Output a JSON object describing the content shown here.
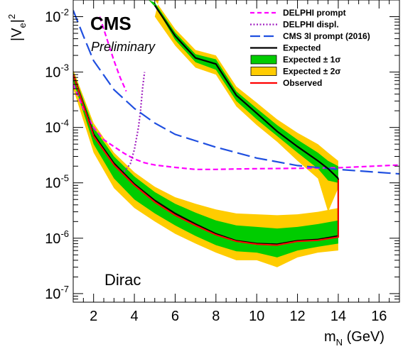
{
  "chart_data": {
    "type": "line",
    "xlabel": "m",
    "xlabel_sub": "N",
    "xunit": " (GeV)",
    "ylabel": "|V",
    "ylabel_sub": "e",
    "ylabel_post": "|",
    "ylabel_sup": "2",
    "xlim": [
      1,
      17
    ],
    "ylim": [
      7e-08,
      0.02
    ],
    "yscale": "log",
    "x_ticks": [
      2,
      4,
      6,
      8,
      10,
      12,
      14,
      16
    ],
    "y_ticks": [
      {
        "v": 1e-07,
        "base": "10",
        "exp": "-7"
      },
      {
        "v": 1e-06,
        "base": "10",
        "exp": "-6"
      },
      {
        "v": 1e-05,
        "base": "10",
        "exp": "-5"
      },
      {
        "v": 0.0001,
        "base": "10",
        "exp": "-4"
      },
      {
        "v": 0.001,
        "base": "10",
        "exp": "-3"
      },
      {
        "v": 0.01,
        "base": "10",
        "exp": "-2"
      }
    ],
    "cms_label": "CMS",
    "preliminary_label": "Preliminary",
    "corner_label": "Dirac",
    "legend": [
      {
        "name": "DELPHI prompt",
        "style": "dash-magenta"
      },
      {
        "name": "DELPHI displ.",
        "style": "dot-purple"
      },
      {
        "name": "CMS 3l prompt (2016)",
        "style": "dash-blue"
      },
      {
        "name": "Expected",
        "style": "line-black"
      },
      {
        "name": "Expected ± 1σ",
        "style": "box-green"
      },
      {
        "name": "Expected ± 2σ",
        "style": "box-yellow"
      },
      {
        "name": "Observed",
        "style": "line-red"
      }
    ],
    "colors": {
      "delphi_prompt": "#ff00ff",
      "delphi_displ": "#a020c0",
      "cms3l": "#1f4fe0",
      "expected": "#000000",
      "band1": "#00cc00",
      "band2": "#ffcc00",
      "observed": "#ff0000"
    },
    "series": [
      {
        "id": "delphi_prompt",
        "x": [
          1,
          1.5,
          2,
          2.5,
          3,
          3.5,
          4,
          4.5,
          5,
          6,
          7,
          8,
          9,
          10,
          12,
          14,
          17
        ],
        "y": [
          0.0006,
          0.00022,
          0.0001,
          6e-05,
          4.5e-05,
          3.4e-05,
          2.7e-05,
          2.3e-05,
          2.1e-05,
          1.9e-05,
          1.75e-05,
          1.75e-05,
          1.78e-05,
          1.8e-05,
          1.83e-05,
          1.87e-05,
          2.1e-05
        ]
      },
      {
        "id": "delphi_prompt_upper",
        "x": [
          2.3,
          2.7,
          3.0,
          3.3,
          3.6
        ],
        "y": [
          0.01,
          0.0035,
          0.0016,
          0.0008,
          0.00045
        ]
      },
      {
        "id": "delphi_displ",
        "x": [
          3.5,
          3.8,
          4.0,
          4.2,
          4.3,
          4.4,
          4.5
        ],
        "y": [
          1.6e-05,
          2.2e-05,
          4e-05,
          0.0001,
          0.0002,
          0.0005,
          0.001
        ]
      },
      {
        "id": "cms3l",
        "x": [
          1,
          1.5,
          2,
          3,
          4,
          5,
          6,
          8,
          10,
          12,
          14,
          17
        ],
        "y": [
          0.013,
          0.0045,
          0.0016,
          0.00048,
          0.00022,
          0.00012,
          7.5e-05,
          4.4e-05,
          2.8e-05,
          2.05e-05,
          1.75e-05,
          1.45e-05
        ]
      },
      {
        "id": "expected",
        "x": [
          1,
          2,
          3,
          4,
          5,
          6,
          7,
          8,
          9,
          10,
          11,
          12,
          13,
          14,
          14
        ],
        "y": [
          0.0009,
          7.5e-05,
          2.25e-05,
          9.5e-06,
          4.8e-06,
          2.8e-06,
          1.8e-06,
          1.2e-06,
          9e-07,
          8e-07,
          7.8e-07,
          9e-07,
          9.5e-07,
          1.1e-06,
          1.2e-05
        ]
      },
      {
        "id": "observed",
        "x": [
          1,
          2,
          3,
          4,
          5,
          6,
          7,
          8,
          9,
          10,
          11,
          12,
          13,
          14,
          14
        ],
        "y": [
          0.0009,
          7e-05,
          2.1e-05,
          9e-06,
          4.5e-06,
          2.6e-06,
          1.7e-06,
          1.15e-06,
          8.8e-07,
          7.8e-07,
          7.5e-07,
          8.8e-07,
          9.2e-07,
          1.05e-06,
          1.15e-05
        ]
      },
      {
        "id": "expected_upper",
        "x": [
          5,
          6,
          7,
          8,
          9,
          10,
          11,
          12,
          13,
          13.5,
          14
        ],
        "y": [
          0.016,
          0.0045,
          0.0018,
          0.0014,
          0.00038,
          0.00018,
          8.5e-05,
          4.5e-05,
          2.5e-05,
          1.8e-05,
          1.2e-05
        ]
      }
    ],
    "band2_outer": {
      "upper_x": [
        1,
        2,
        3,
        4,
        5,
        6,
        7,
        8,
        9,
        10,
        11,
        12,
        13,
        14,
        14
      ],
      "upper_y": [
        0.0011,
        0.00012,
        3.5e-05,
        1.55e-05,
        8.5e-06,
        5.5e-06,
        4.2e-06,
        3.3e-06,
        2.8e-06,
        2.7e-06,
        2.6e-06,
        2.7e-06,
        3e-06,
        3.5e-06,
        2.5e-05
      ],
      "lower_x": [
        14,
        14,
        13,
        12,
        11,
        10,
        9,
        8,
        7,
        6,
        5,
        4,
        3,
        2,
        1
      ],
      "lower_y": [
        9e-06,
        6e-07,
        5.5e-07,
        4.5e-07,
        3e-07,
        4e-07,
        4e-07,
        5.5e-07,
        8e-07,
        1.2e-06,
        2e-06,
        3.5e-06,
        8e-06,
        3.5e-05,
        0.0005
      ]
    },
    "band1": {
      "upper_x": [
        1,
        2,
        3,
        4,
        5,
        6,
        7,
        8,
        9,
        10,
        11,
        12,
        13,
        14,
        14
      ],
      "upper_y": [
        0.001,
        0.0001,
        3e-05,
        1.3e-05,
        6.8e-06,
        4.2e-06,
        2.9e-06,
        2.1e-06,
        1.7e-06,
        1.6e-06,
        1.5e-06,
        1.6e-06,
        1.8e-06,
        2.1e-06,
        1.6e-05
      ],
      "lower_x": [
        14,
        14,
        13,
        12,
        11,
        10,
        9,
        8,
        7,
        6,
        5,
        4,
        3,
        2,
        1
      ],
      "lower_y": [
        1.1e-05,
        8e-07,
        7e-07,
        6e-07,
        4.5e-07,
        5.5e-07,
        5.8e-07,
        7.5e-07,
        1.1e-06,
        1.7e-06,
        2.8e-06,
        5e-06,
        1.2e-05,
        5e-05,
        0.0007
      ]
    },
    "upper_band2": {
      "x": [
        4.5,
        5,
        6,
        7,
        8,
        9,
        10,
        11,
        12,
        13,
        13.5,
        14,
        14,
        13.5,
        13,
        12,
        11,
        10,
        9,
        8,
        7,
        6,
        5,
        5.2
      ],
      "y": [
        0.02,
        0.02,
        0.006,
        0.0025,
        0.002,
        0.00055,
        0.00028,
        0.00014,
        8e-05,
        5e-05,
        3.5e-05,
        2.5e-05,
        8e-06,
        3e-06,
        1.2e-05,
        2.5e-05,
        5.5e-05,
        0.00011,
        0.00024,
        0.0009,
        0.0012,
        0.003,
        0.01,
        0.02
      ]
    },
    "upper_band1": {
      "x": [
        4.7,
        5,
        6,
        7,
        8,
        9,
        10,
        11,
        12,
        13,
        13.5,
        14,
        14,
        13.5,
        13,
        12,
        11,
        10,
        9,
        8,
        7,
        6,
        5.1
      ],
      "y": [
        0.02,
        0.018,
        0.0052,
        0.0021,
        0.0017,
        0.00045,
        0.00022,
        0.00011,
        6e-05,
        3.5e-05,
        2.5e-05,
        2e-05,
        1e-05,
        1.1e-05,
        1.8e-05,
        3.5e-05,
        7e-05,
        0.00014,
        0.0003,
        0.0011,
        0.0015,
        0.0038,
        0.014
      ]
    }
  }
}
